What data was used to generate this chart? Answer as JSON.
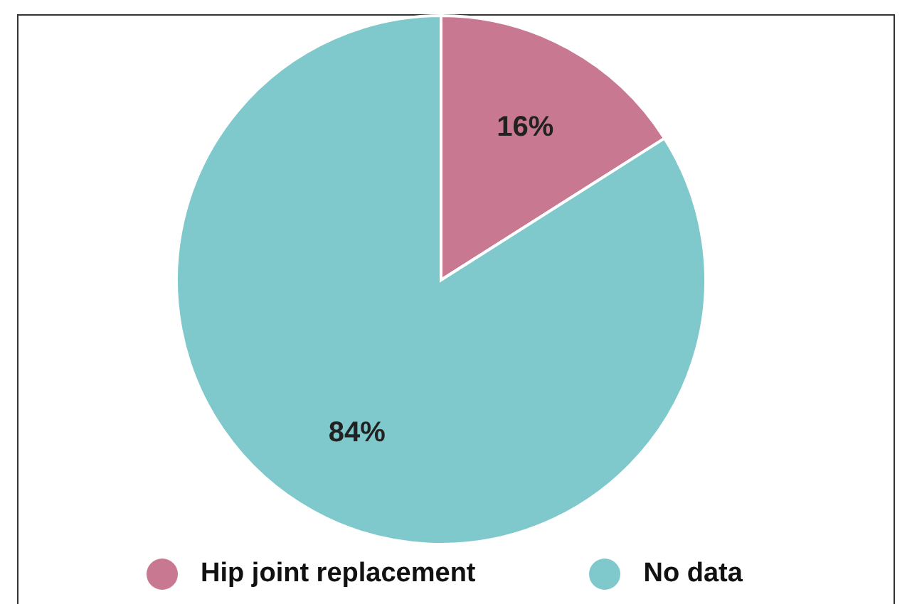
{
  "chart_data": {
    "type": "pie",
    "categories": [
      "Hip joint replacement",
      "No data"
    ],
    "values": [
      16,
      84
    ],
    "colors": [
      "#c97891",
      "#7fc8cc"
    ],
    "value_labels": [
      "16%",
      "84%"
    ],
    "legend": "bottom"
  }
}
